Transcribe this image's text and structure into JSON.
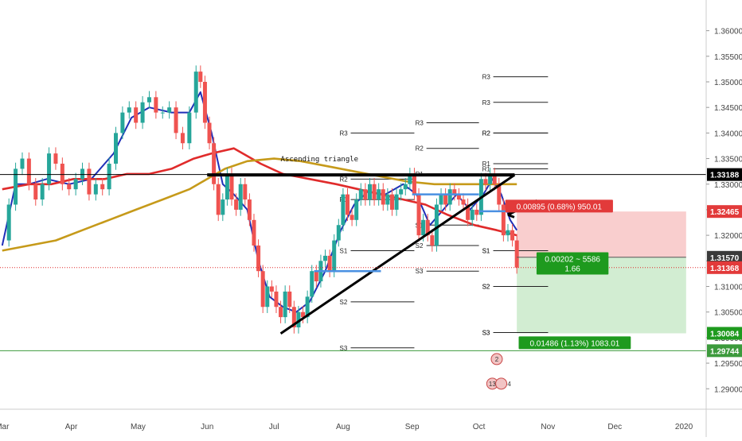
{
  "chart_data": {
    "type": "candlestick",
    "title": "",
    "y_axis": {
      "ylim": [
        1.286,
        1.366
      ],
      "tick_values": [
        1.29,
        1.295,
        1.3,
        1.305,
        1.31,
        1.315,
        1.32,
        1.325,
        1.33,
        1.335,
        1.34,
        1.345,
        1.35,
        1.355,
        1.36
      ],
      "tick_labels": [
        "1.29000",
        "1.29500",
        "1.30000",
        "1.30500",
        "1.31000",
        "1.31500",
        "1.32000",
        "1.32500",
        "1.33000",
        "1.33500",
        "1.34000",
        "1.34500",
        "1.35000",
        "1.35500",
        "1.36000"
      ]
    },
    "x_axis": {
      "months": [
        {
          "label": "Mar",
          "day": 0
        },
        {
          "label": "Apr",
          "day": 31
        },
        {
          "label": "May",
          "day": 61
        },
        {
          "label": "Jun",
          "day": 92
        },
        {
          "label": "Jul",
          "day": 122
        },
        {
          "label": "Aug",
          "day": 153
        },
        {
          "label": "Sep",
          "day": 184
        },
        {
          "label": "Oct",
          "day": 214
        },
        {
          "label": "Nov",
          "day": 245
        },
        {
          "label": "Dec",
          "day": 275
        },
        {
          "label": "2020",
          "day": 306
        }
      ],
      "xlim_days": [
        -1,
        316
      ]
    },
    "closes": [
      [
        0,
        1.319
      ],
      [
        3,
        1.326
      ],
      [
        6,
        1.333
      ],
      [
        9,
        1.335
      ],
      [
        12,
        1.33
      ],
      [
        15,
        1.327
      ],
      [
        18,
        1.33
      ],
      [
        21,
        1.336
      ],
      [
        24,
        1.334
      ],
      [
        27,
        1.33
      ],
      [
        30,
        1.329
      ],
      [
        33,
        1.331
      ],
      [
        36,
        1.333
      ],
      [
        39,
        1.328
      ],
      [
        42,
        1.33
      ],
      [
        45,
        1.329
      ],
      [
        48,
        1.334
      ],
      [
        51,
        1.34
      ],
      [
        54,
        1.344
      ],
      [
        57,
        1.345
      ],
      [
        60,
        1.342
      ],
      [
        63,
        1.346
      ],
      [
        66,
        1.347
      ],
      [
        69,
        1.344
      ],
      [
        72,
        1.344
      ],
      [
        75,
        1.345
      ],
      [
        78,
        1.34
      ],
      [
        81,
        1.338
      ],
      [
        84,
        1.344
      ],
      [
        87,
        1.352
      ],
      [
        89,
        1.35
      ],
      [
        91,
        1.342
      ],
      [
        93,
        1.338
      ],
      [
        95,
        1.33
      ],
      [
        97,
        1.324
      ],
      [
        99,
        1.327
      ],
      [
        101,
        1.332
      ],
      [
        103,
        1.327
      ],
      [
        105,
        1.325
      ],
      [
        107,
        1.33
      ],
      [
        109,
        1.327
      ],
      [
        111,
        1.323
      ],
      [
        113,
        1.318
      ],
      [
        115,
        1.313
      ],
      [
        117,
        1.306
      ],
      [
        119,
        1.31
      ],
      [
        121,
        1.309
      ],
      [
        123,
        1.306
      ],
      [
        125,
        1.304
      ],
      [
        127,
        1.309
      ],
      [
        129,
        1.306
      ],
      [
        131,
        1.302
      ],
      [
        133,
        1.305
      ],
      [
        135,
        1.304
      ],
      [
        137,
        1.308
      ],
      [
        139,
        1.313
      ],
      [
        141,
        1.311
      ],
      [
        143,
        1.315
      ],
      [
        145,
        1.316
      ],
      [
        147,
        1.313
      ],
      [
        149,
        1.319
      ],
      [
        151,
        1.322
      ],
      [
        153,
        1.328
      ],
      [
        155,
        1.324
      ],
      [
        157,
        1.323
      ],
      [
        159,
        1.327
      ],
      [
        161,
        1.329
      ],
      [
        163,
        1.327
      ],
      [
        165,
        1.33
      ],
      [
        167,
        1.327
      ],
      [
        169,
        1.329
      ],
      [
        171,
        1.326
      ],
      [
        173,
        1.328
      ],
      [
        175,
        1.325
      ],
      [
        177,
        1.328
      ],
      [
        179,
        1.329
      ],
      [
        181,
        1.33
      ],
      [
        183,
        1.332
      ],
      [
        185,
        1.328
      ],
      [
        187,
        1.32
      ],
      [
        189,
        1.323
      ],
      [
        191,
        1.32
      ],
      [
        193,
        1.318
      ],
      [
        195,
        1.326
      ],
      [
        197,
        1.328
      ],
      [
        199,
        1.326
      ],
      [
        201,
        1.329
      ],
      [
        203,
        1.328
      ],
      [
        205,
        1.327
      ],
      [
        207,
        1.326
      ],
      [
        209,
        1.323
      ],
      [
        211,
        1.325
      ],
      [
        213,
        1.324
      ],
      [
        215,
        1.331
      ],
      [
        217,
        1.33
      ],
      [
        219,
        1.332
      ],
      [
        221,
        1.33
      ],
      [
        223,
        1.326
      ],
      [
        225,
        1.32
      ],
      [
        227,
        1.321
      ],
      [
        229,
        1.319
      ],
      [
        231,
        1.3137
      ]
    ],
    "series": [
      {
        "name": "",
        "color": "#1f2fb8",
        "values": [
          [
            0,
            1.318
          ],
          [
            6,
            1.33
          ],
          [
            12,
            1.33
          ],
          [
            20,
            1.331
          ],
          [
            30,
            1.33
          ],
          [
            40,
            1.331
          ],
          [
            50,
            1.336
          ],
          [
            58,
            1.343
          ],
          [
            66,
            1.345
          ],
          [
            76,
            1.344
          ],
          [
            84,
            1.344
          ],
          [
            89,
            1.348
          ],
          [
            94,
            1.34
          ],
          [
            99,
            1.33
          ],
          [
            104,
            1.328
          ],
          [
            110,
            1.325
          ],
          [
            115,
            1.315
          ],
          [
            120,
            1.308
          ],
          [
            126,
            1.306
          ],
          [
            132,
            1.305
          ],
          [
            138,
            1.307
          ],
          [
            145,
            1.313
          ],
          [
            152,
            1.321
          ],
          [
            158,
            1.326
          ],
          [
            164,
            1.3285
          ],
          [
            172,
            1.328
          ],
          [
            180,
            1.33
          ],
          [
            186,
            1.328
          ],
          [
            192,
            1.322
          ],
          [
            198,
            1.325
          ],
          [
            204,
            1.328
          ],
          [
            210,
            1.325
          ],
          [
            216,
            1.328
          ],
          [
            220,
            1.331
          ],
          [
            224,
            1.328
          ],
          [
            228,
            1.323
          ],
          [
            231,
            1.321
          ]
        ]
      },
      {
        "name": "",
        "color": "#e02b2b",
        "values": [
          [
            0,
            1.329
          ],
          [
            12,
            1.33
          ],
          [
            22,
            1.33
          ],
          [
            32,
            1.331
          ],
          [
            46,
            1.331
          ],
          [
            56,
            1.332
          ],
          [
            66,
            1.332
          ],
          [
            76,
            1.333
          ],
          [
            86,
            1.335
          ],
          [
            94,
            1.336
          ],
          [
            104,
            1.337
          ],
          [
            116,
            1.334
          ],
          [
            126,
            1.332
          ],
          [
            138,
            1.331
          ],
          [
            150,
            1.33
          ],
          [
            160,
            1.329
          ],
          [
            170,
            1.328
          ],
          [
            180,
            1.327
          ],
          [
            190,
            1.326
          ],
          [
            200,
            1.324
          ],
          [
            212,
            1.322
          ],
          [
            222,
            1.321
          ],
          [
            231,
            1.32
          ]
        ]
      },
      {
        "name": "",
        "color": "#c69a1a",
        "values": [
          [
            0,
            1.317
          ],
          [
            12,
            1.318
          ],
          [
            24,
            1.319
          ],
          [
            36,
            1.321
          ],
          [
            48,
            1.323
          ],
          [
            60,
            1.325
          ],
          [
            72,
            1.327
          ],
          [
            84,
            1.329
          ],
          [
            92,
            1.331
          ],
          [
            100,
            1.333
          ],
          [
            110,
            1.3345
          ],
          [
            122,
            1.335
          ],
          [
            134,
            1.3345
          ],
          [
            146,
            1.3335
          ],
          [
            158,
            1.3325
          ],
          [
            170,
            1.3315
          ],
          [
            182,
            1.3305
          ],
          [
            194,
            1.33
          ],
          [
            206,
            1.33
          ],
          [
            218,
            1.33
          ],
          [
            231,
            1.33
          ]
        ]
      }
    ],
    "pivots": [
      {
        "label": "R3",
        "value": 1.34,
        "day_start": 150,
        "day_end": 185
      },
      {
        "label": "R2",
        "value": 1.331,
        "day_start": 150,
        "day_end": 185
      },
      {
        "label": "R1",
        "value": 1.327,
        "day_start": 150,
        "day_end": 185
      },
      {
        "label": "S1",
        "value": 1.317,
        "day_start": 150,
        "day_end": 185
      },
      {
        "label": "S2",
        "value": 1.307,
        "day_start": 150,
        "day_end": 185
      },
      {
        "label": "S3",
        "value": 1.298,
        "day_start": 150,
        "day_end": 185
      },
      {
        "label": "R3",
        "value": 1.342,
        "day_start": 184,
        "day_end": 214
      },
      {
        "label": "R2",
        "value": 1.337,
        "day_start": 184,
        "day_end": 214
      },
      {
        "label": "R1",
        "value": 1.332,
        "day_start": 184,
        "day_end": 214
      },
      {
        "label": "S1",
        "value": 1.322,
        "day_start": 184,
        "day_end": 214
      },
      {
        "label": "S2",
        "value": 1.318,
        "day_start": 184,
        "day_end": 214
      },
      {
        "label": "S3",
        "value": 1.313,
        "day_start": 184,
        "day_end": 214
      },
      {
        "label": "R3",
        "value": 1.346,
        "day_start": 214,
        "day_end": 245
      },
      {
        "label": "R2",
        "value": 1.34,
        "day_start": 214,
        "day_end": 245
      },
      {
        "label": "R1",
        "value": 1.334,
        "day_start": 214,
        "day_end": 245
      },
      {
        "label": "S1",
        "value": 1.317,
        "day_start": 214,
        "day_end": 245
      },
      {
        "label": "S2",
        "value": 1.31,
        "day_start": 214,
        "day_end": 245
      },
      {
        "label": "S3",
        "value": 1.301,
        "day_start": 214,
        "day_end": 245
      },
      {
        "label": "R3",
        "value": 1.351,
        "day_start": 214,
        "day_end": 245
      },
      {
        "label": "R2",
        "value": 1.34,
        "day_start": 214,
        "day_end": 245
      },
      {
        "label": "R1",
        "value": 1.333,
        "day_start": 214,
        "day_end": 245
      },
      {
        "label": "S1",
        "value": 1.317,
        "day_start": 214,
        "day_end": 245
      },
      {
        "label": "S2",
        "value": 1.31,
        "day_start": 214,
        "day_end": 245
      },
      {
        "label": "S3",
        "value": 1.301,
        "day_start": 214,
        "day_end": 245
      }
    ],
    "horizontal_line": {
      "value": 1.33188,
      "color": "#000000"
    },
    "dotted_line": {
      "value": 1.31368,
      "color": "#e02b2b"
    },
    "green_line": {
      "value": 1.29744,
      "color": "#3c9a3c"
    },
    "annotation": {
      "text": "Ascending triangle"
    },
    "position": {
      "entry": 1.3157,
      "stop": 1.32465,
      "target": 1.30084,
      "day_start": 231,
      "day_end": 307,
      "stop_label": "0.00895 (0.68%) 950.01",
      "entry_label_1": "0.00202 ~ 5586",
      "entry_label_2": "1.66",
      "target_label": "0.01486 (1.13%) 1083.01"
    },
    "price_labels": [
      {
        "text": "1.33188",
        "value": 1.33188,
        "bg": "#000000",
        "fg": "#ffffff"
      },
      {
        "text": "1.32465",
        "value": 1.32465,
        "bg": "#e23a3a",
        "fg": "#ffffff"
      },
      {
        "text": "1.31570",
        "value": 1.3157,
        "bg": "#3a3a3a",
        "fg": "#ffffff"
      },
      {
        "text": "1.31368",
        "value": 1.31368,
        "bg": "#e23a3a",
        "fg": "#ffffff"
      },
      {
        "text": "1.30084",
        "value": 1.30084,
        "bg": "#1e9a1e",
        "fg": "#ffffff"
      },
      {
        "text": "1.29744",
        "value": 1.29744,
        "bg": "#3c9a3c",
        "fg": "#ffffff"
      }
    ],
    "events": [
      {
        "label": "2",
        "day": 222
      },
      {
        "label": "13",
        "day": 220
      },
      {
        "label": "4",
        "day": 224
      }
    ],
    "grid": false,
    "legend": "none"
  }
}
